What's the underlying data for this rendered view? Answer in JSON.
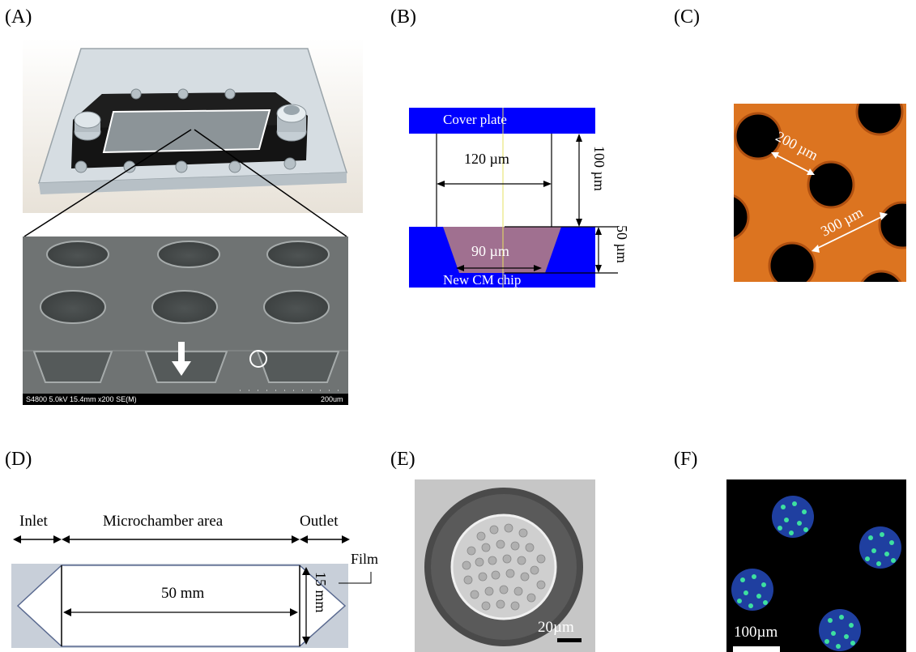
{
  "panels": {
    "a": {
      "label": "(A)",
      "sem_info": "S4800 5.0kV 15.4mm x200 SE(M)",
      "sem_scale": "200um"
    },
    "b": {
      "label": "(B)",
      "cover_plate": "Cover plate",
      "chip": "New CM chip",
      "dim_top_width": "120 µm",
      "dim_height": "100 µm",
      "dim_depth": "50 µm",
      "dim_bottom_width": "90 µm"
    },
    "c": {
      "label": "(C)",
      "dim_diameter": "200 µm",
      "dim_pitch": "300 µm"
    },
    "d": {
      "label": "(D)",
      "inlet": "Inlet",
      "area": "Microchamber area",
      "outlet": "Outlet",
      "film": "Film",
      "length": "50 mm",
      "width": "15 mm"
    },
    "e": {
      "label": "(E)",
      "scale": "20µm"
    },
    "f": {
      "label": "(F)",
      "scale": "100µm"
    }
  },
  "colors": {
    "blue": "#0000ff",
    "well": "#a07090",
    "orange": "#e07820",
    "film": "#c8cfd9",
    "sem": "#6e7272"
  }
}
